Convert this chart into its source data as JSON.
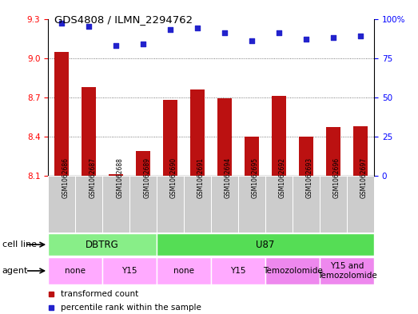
{
  "title": "GDS4808 / ILMN_2294762",
  "samples": [
    "GSM1062686",
    "GSM1062687",
    "GSM1062688",
    "GSM1062689",
    "GSM1062690",
    "GSM1062691",
    "GSM1062694",
    "GSM1062695",
    "GSM1062692",
    "GSM1062693",
    "GSM1062696",
    "GSM1062697"
  ],
  "bar_values": [
    9.05,
    8.78,
    8.11,
    8.29,
    8.68,
    8.76,
    8.69,
    8.4,
    8.71,
    8.4,
    8.47,
    8.48
  ],
  "scatter_values": [
    97,
    95,
    83,
    84,
    93,
    94,
    91,
    86,
    91,
    87,
    88,
    89
  ],
  "ylim_left": [
    8.1,
    9.3
  ],
  "ylim_right": [
    0,
    100
  ],
  "yticks_left": [
    8.1,
    8.4,
    8.7,
    9.0,
    9.3
  ],
  "yticks_right": [
    0,
    25,
    50,
    75,
    100
  ],
  "bar_color": "#bb1111",
  "scatter_color": "#2222cc",
  "cell_line_groups": [
    {
      "label": "DBTRG",
      "start": 0,
      "end": 3,
      "color": "#88ee88"
    },
    {
      "label": "U87",
      "start": 4,
      "end": 11,
      "color": "#55dd55"
    }
  ],
  "agent_groups": [
    {
      "label": "none",
      "start": 0,
      "end": 1,
      "color": "#ffaaff"
    },
    {
      "label": "Y15",
      "start": 2,
      "end": 3,
      "color": "#ffaaff"
    },
    {
      "label": "none",
      "start": 4,
      "end": 5,
      "color": "#ffaaff"
    },
    {
      "label": "Y15",
      "start": 6,
      "end": 7,
      "color": "#ffaaff"
    },
    {
      "label": "Temozolomide",
      "start": 8,
      "end": 9,
      "color": "#ee88ee"
    },
    {
      "label": "Y15 and\nTemozolomide",
      "start": 10,
      "end": 11,
      "color": "#ee88ee"
    }
  ],
  "legend_bar_label": "transformed count",
  "legend_scatter_label": "percentile rank within the sample",
  "cell_line_label": "cell line",
  "agent_label": "agent",
  "background_color": "#ffffff",
  "grid_color": "#555555",
  "bar_width": 0.55,
  "sample_box_color": "#cccccc"
}
